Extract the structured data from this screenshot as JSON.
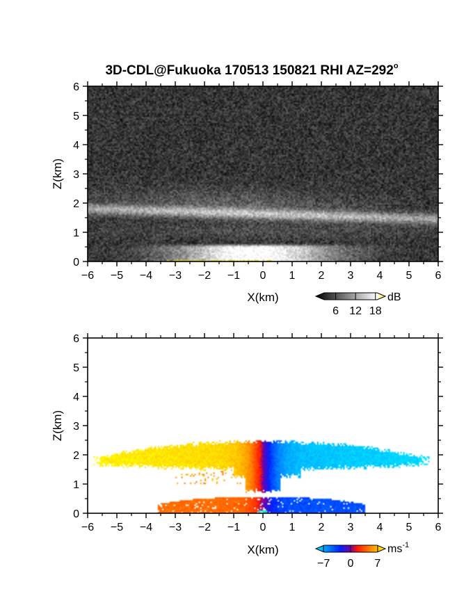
{
  "chart_data": [
    {
      "type": "heatmap",
      "title": "3D-CDL@Fukuoka 170513 150821 RHI AZ=292",
      "title_degree": "o",
      "xlabel": "X(km)",
      "ylabel": "Z(km)",
      "xlim": [
        -6,
        6
      ],
      "ylim": [
        0,
        6
      ],
      "x_ticks": [
        "-6",
        "-5",
        "-4",
        "-3",
        "-2",
        "-1",
        "0",
        "1",
        "2",
        "3",
        "4",
        "5",
        "6"
      ],
      "y_ticks": [
        "0",
        "1",
        "2",
        "3",
        "4",
        "5",
        "6"
      ],
      "grid": false,
      "colorbar": {
        "unit": "dB",
        "unit_sup": "",
        "colormap": "grayscale",
        "ticks": [
          "6",
          "12",
          "18"
        ],
        "range": [
          0,
          21
        ],
        "colors": [
          "#000000",
          "#ffffff",
          "#ffe600"
        ]
      },
      "features": [
        {
          "label": "cloud layer",
          "x": [
            -6,
            6
          ],
          "z_center_left": 1.8,
          "z_center_right": 1.45,
          "intensity_db": 14
        },
        {
          "label": "surface layer",
          "x": [
            -4,
            3.2
          ],
          "z": [
            0,
            0.55
          ],
          "intensity_db": 16
        }
      ]
    },
    {
      "type": "heatmap",
      "xlabel": "X(km)",
      "ylabel": "Z(km)",
      "xlim": [
        -6,
        6
      ],
      "ylim": [
        0,
        6
      ],
      "x_ticks": [
        "-6",
        "-5",
        "-4",
        "-3",
        "-2",
        "-1",
        "0",
        "1",
        "2",
        "3",
        "4",
        "5",
        "6"
      ],
      "y_ticks": [
        "0",
        "1",
        "2",
        "3",
        "4",
        "5",
        "6"
      ],
      "grid": false,
      "colorbar": {
        "unit": "ms",
        "unit_sup": "-1",
        "colormap": "blue-cyan-red-yellow",
        "ticks": [
          "-7",
          "0",
          "7"
        ],
        "range": [
          -9,
          9
        ],
        "colors": [
          "#00e8ff",
          "#0020ff",
          "#ff1a00",
          "#ffff00"
        ]
      },
      "features": [
        {
          "label": "upper layer",
          "x": [
            -5.8,
            5.7
          ],
          "z": [
            1.4,
            2.5
          ],
          "velocity_left": 7,
          "velocity_right": -7
        },
        {
          "label": "lower layer",
          "x": [
            -3.6,
            3.5
          ],
          "z": [
            0,
            0.55
          ],
          "velocity_left": 4,
          "velocity_right": -4
        }
      ]
    }
  ]
}
